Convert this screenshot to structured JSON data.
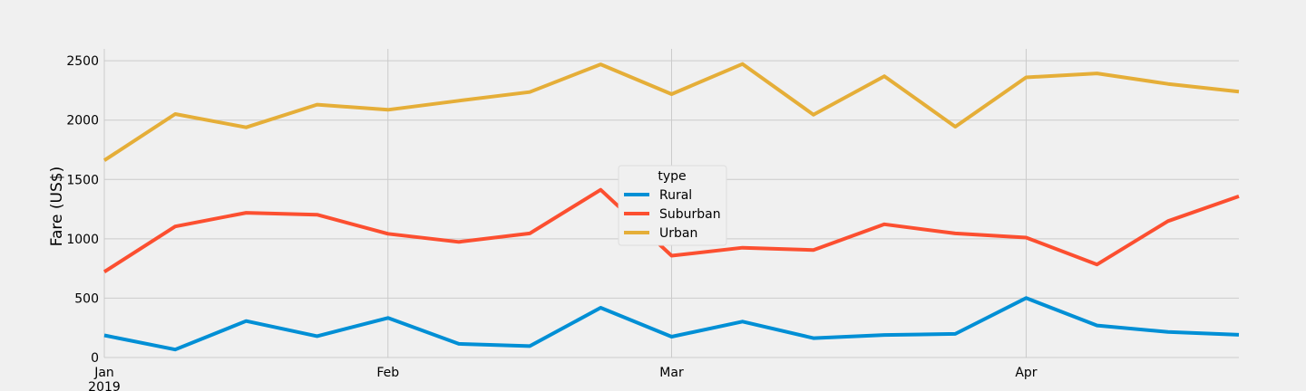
{
  "chart_data": {
    "type": "line",
    "title": "",
    "xlabel": "",
    "ylabel": "Fare (US$)",
    "x": [
      "2019-01-06",
      "2019-01-13",
      "2019-01-20",
      "2019-01-27",
      "2019-02-03",
      "2019-02-10",
      "2019-02-17",
      "2019-02-24",
      "2019-03-03",
      "2019-03-10",
      "2019-03-17",
      "2019-03-24",
      "2019-03-31",
      "2019-04-07",
      "2019-04-14",
      "2019-04-21",
      "2019-04-28"
    ],
    "xlim": [
      "2019-01-06",
      "2019-04-28"
    ],
    "xticks": [
      {
        "date": "2019-01-06",
        "label": "Jan",
        "sublabel": "2019"
      },
      {
        "date": "2019-02-03",
        "label": "Feb",
        "sublabel": ""
      },
      {
        "date": "2019-03-03",
        "label": "Mar",
        "sublabel": ""
      },
      {
        "date": "2019-04-07",
        "label": "Apr",
        "sublabel": ""
      }
    ],
    "ylim": [
      0,
      2600
    ],
    "yticks": [
      {
        "value": 0,
        "label": "0"
      },
      {
        "value": 500,
        "label": "500"
      },
      {
        "value": 1000,
        "label": "1000"
      },
      {
        "value": 1500,
        "label": "1500"
      },
      {
        "value": 2000,
        "label": "2000"
      },
      {
        "value": 2500,
        "label": "2500"
      }
    ],
    "grid": true,
    "legend": {
      "title": "type",
      "placement": "center"
    },
    "series": [
      {
        "name": "Rural",
        "color": "#008fd5",
        "values": [
          187,
          67,
          307,
          180,
          333,
          115,
          96,
          419,
          175,
          303,
          163,
          190,
          199,
          501,
          270,
          215,
          191
        ]
      },
      {
        "name": "Suburban",
        "color": "#fc4f30",
        "values": [
          722,
          1104,
          1219,
          1203,
          1042,
          974,
          1045,
          1413,
          858,
          925,
          906,
          1122,
          1045,
          1010,
          784,
          1149,
          1358
        ]
      },
      {
        "name": "Urban",
        "color": "#e5ae38",
        "values": [
          1661,
          2051,
          1939,
          2130,
          2087,
          2163,
          2236,
          2470,
          2219,
          2473,
          2046,
          2370,
          1944,
          2360,
          2393,
          2305,
          2240
        ]
      }
    ]
  }
}
